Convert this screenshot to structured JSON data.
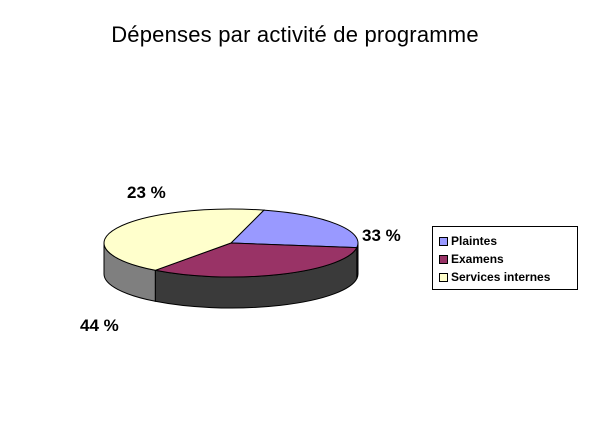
{
  "chart_data": {
    "type": "pie",
    "title": "Dépenses par activité de programme",
    "slices": [
      {
        "label": "Plaintes",
        "value": 23,
        "value_label": "23 %",
        "color": "#9999FF",
        "side_color": "#5C5C99"
      },
      {
        "label": "Examens",
        "value": 33,
        "value_label": "33 %",
        "color": "#993366",
        "side_color": "#3A3A3A"
      },
      {
        "label": "Services internes",
        "value": 44,
        "value_label": "44 %",
        "color": "#FFFFCC",
        "side_color": "#7F7F7F"
      }
    ],
    "legend_position": "right",
    "three_d": true
  }
}
